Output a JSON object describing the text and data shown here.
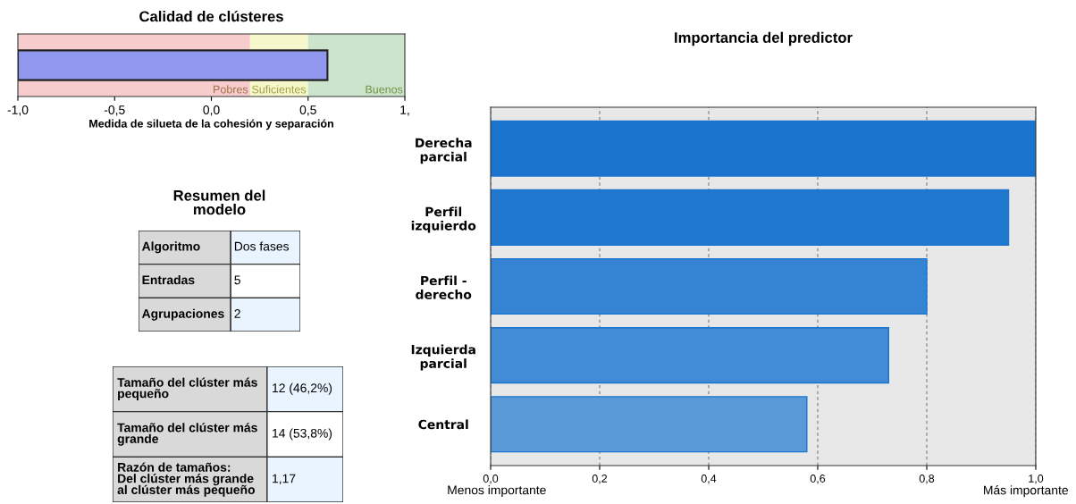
{
  "chart_data": [
    {
      "type": "bar",
      "orientation": "horizontal",
      "title": "Calidad de clústeres",
      "xlabel": "Medida de silueta de la cohesión y separación",
      "categories": [
        null
      ],
      "values": [
        1.6
      ],
      "base": [
        -1
      ],
      "color": "#8f98ee",
      "xlim": [
        -1,
        1
      ],
      "xticks": [
        {
          "value": -1,
          "label": "-1,0"
        },
        {
          "value": -0.5,
          "label": "-0,5"
        },
        {
          "value": 0,
          "label": "0,0"
        },
        {
          "value": 0.5,
          "label": "0,5"
        },
        {
          "value": 1,
          "label": "1,"
        }
      ],
      "bands": [
        {
          "axis": "x",
          "from": -1,
          "to": 0.2,
          "label": "Pobres",
          "color": "#f7cccc"
        },
        {
          "axis": "x",
          "from": 0.2,
          "to": 0.5,
          "label": "Suficientes",
          "color": "#f7f7cc"
        },
        {
          "axis": "x",
          "from": 0.5,
          "to": 1,
          "label": "Buenos",
          "color": "#cce4cc"
        }
      ],
      "grid": false,
      "legend": false
    },
    {
      "type": "bar",
      "orientation": "horizontal",
      "title": "Importancia del predictor",
      "categories": [
        "Derecha\nparcial",
        "Perfil\nizquierdo",
        "Perfil -\nderecho",
        "Izquierda\nparcial",
        "Central"
      ],
      "values": [
        1.0,
        0.95,
        0.8,
        0.73,
        0.58
      ],
      "colors": [
        "#1a73cc",
        "#2079cf",
        "#3584d3",
        "#428bd5",
        "#5b9ad8"
      ],
      "xlim": [
        0,
        1
      ],
      "xticks": [
        {
          "value": 0,
          "label": "0,0"
        },
        {
          "value": 0.2,
          "label": "0,2"
        },
        {
          "value": 0.4,
          "label": "0,4"
        },
        {
          "value": 0.6,
          "label": "0,6"
        },
        {
          "value": 0.8,
          "label": "0,8"
        },
        {
          "value": 1,
          "label": "1,0"
        }
      ],
      "annotations": [
        "Menos importante",
        "Más importante"
      ],
      "grid": "x",
      "legend": false
    },
    {
      "type": "other",
      "title": "Resumen del\nmodelo",
      "annotations": [
        "Algoritmo",
        "Dos fases",
        "Entradas",
        "5",
        "Agrupaciones",
        "2"
      ]
    },
    {
      "type": "other",
      "annotations": [
        "Tamaño del clúster más\npequeño",
        "12 (46,2%)",
        "Tamaño del clúster más\ngrande",
        "14 (53,8%)",
        "Razón de tamaños:\nDel clúster más grande\nal clúster más pequeño",
        "1,17"
      ]
    }
  ]
}
